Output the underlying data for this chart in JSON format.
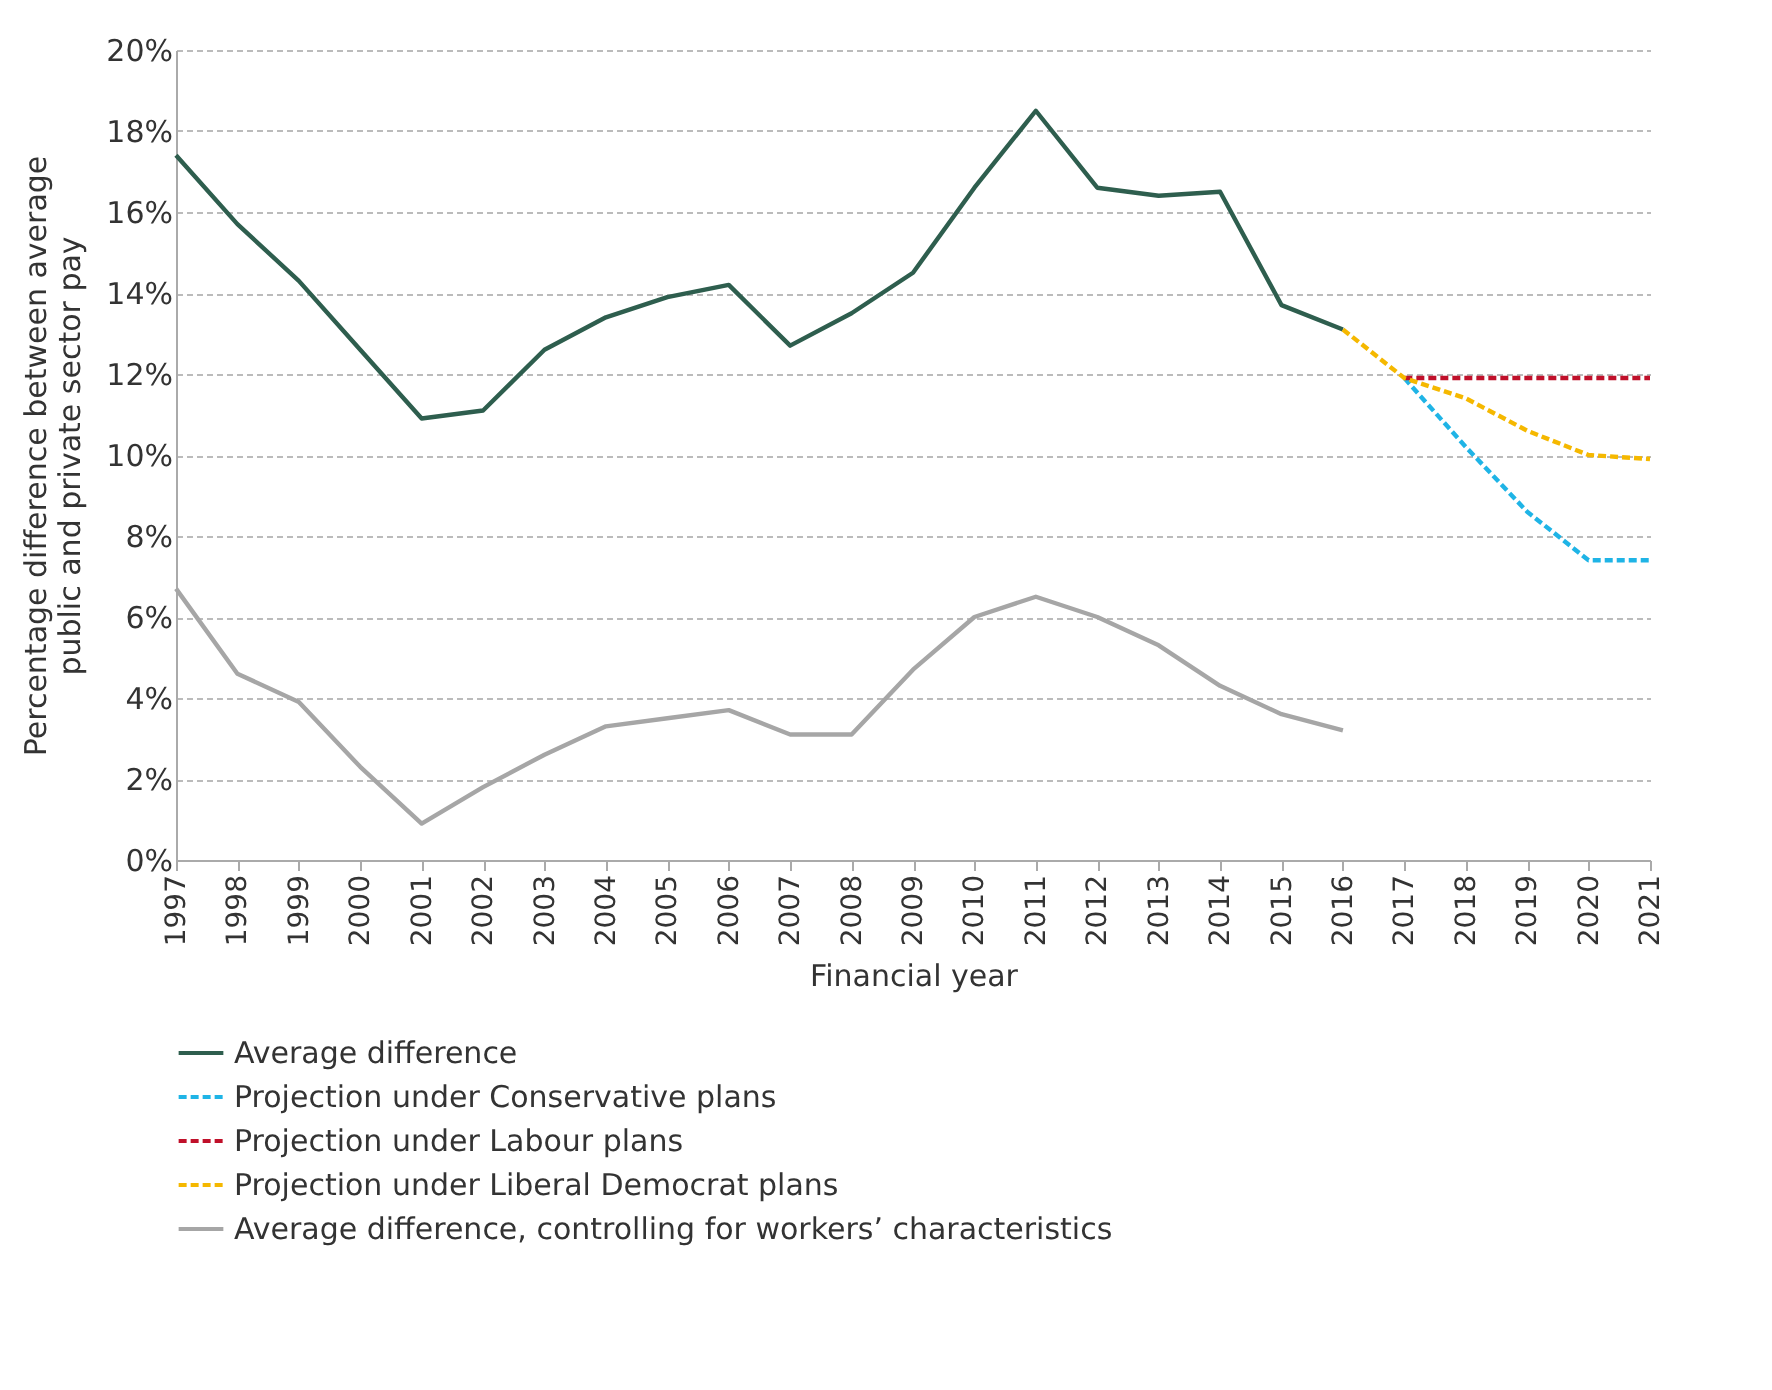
{
  "chart_data": {
    "type": "line",
    "xlabel": "Financial year",
    "ylabel": "Percentage difference between average public and private sector pay",
    "categories": [
      "1997",
      "1998",
      "1999",
      "2000",
      "2001",
      "2002",
      "2003",
      "2004",
      "2005",
      "2006",
      "2007",
      "2008",
      "2009",
      "2010",
      "2011",
      "2012",
      "2013",
      "2014",
      "2015",
      "2016",
      "2017",
      "2018",
      "2019",
      "2020",
      "2021"
    ],
    "series": [
      {
        "name": "Average difference",
        "color": "#2e5e4e",
        "line_style": "solid",
        "values": [
          17.4,
          15.7,
          14.3,
          12.6,
          10.9,
          11.1,
          12.6,
          13.4,
          13.9,
          14.2,
          12.7,
          13.5,
          14.5,
          16.6,
          18.5,
          16.6,
          16.4,
          16.5,
          13.7,
          13.1,
          null,
          null,
          null,
          null,
          null
        ]
      },
      {
        "name": "Projection under Conservative plans",
        "color": "#1fb4e6",
        "line_style": "dashed",
        "values": [
          null,
          null,
          null,
          null,
          null,
          null,
          null,
          null,
          null,
          null,
          null,
          null,
          null,
          null,
          null,
          null,
          null,
          null,
          null,
          null,
          11.9,
          10.2,
          8.6,
          7.4,
          7.4
        ]
      },
      {
        "name": "Projection under Labour plans",
        "color": "#c0102a",
        "line_style": "dashed",
        "values": [
          null,
          null,
          null,
          null,
          null,
          null,
          null,
          null,
          null,
          null,
          null,
          null,
          null,
          null,
          null,
          null,
          null,
          null,
          null,
          null,
          11.9,
          11.9,
          11.9,
          11.9,
          11.9
        ]
      },
      {
        "name": "Projection under Liberal Democrat plans",
        "color": "#f5b800",
        "line_style": "dashed",
        "values": [
          null,
          null,
          null,
          null,
          null,
          null,
          null,
          null,
          null,
          null,
          null,
          null,
          null,
          null,
          null,
          null,
          null,
          null,
          null,
          13.1,
          11.9,
          11.4,
          10.6,
          10.0,
          9.9
        ]
      },
      {
        "name": "Average difference, controlling for workers’ characteristics",
        "color": "#a6a6a6",
        "line_style": "solid",
        "values": [
          6.7,
          4.6,
          3.9,
          2.3,
          0.9,
          1.8,
          2.6,
          3.3,
          3.5,
          3.7,
          3.1,
          3.1,
          4.7,
          6.0,
          6.5,
          6.0,
          5.3,
          4.3,
          3.6,
          3.2,
          null,
          null,
          null,
          null,
          null
        ]
      }
    ],
    "ylim": [
      0,
      20
    ],
    "yticks": [
      {
        "value": 0,
        "label": "0%"
      },
      {
        "value": 2,
        "label": "2%"
      },
      {
        "value": 4,
        "label": "4%"
      },
      {
        "value": 6,
        "label": "6%"
      },
      {
        "value": 8,
        "label": "8%"
      },
      {
        "value": 10,
        "label": "10%"
      },
      {
        "value": 12,
        "label": "12%"
      },
      {
        "value": 14,
        "label": "14%"
      },
      {
        "value": 16,
        "label": "16%"
      },
      {
        "value": 18,
        "label": "18%"
      },
      {
        "value": 20,
        "label": "20%"
      }
    ],
    "grid": "y",
    "legend": "bottom",
    "marker": "none"
  }
}
